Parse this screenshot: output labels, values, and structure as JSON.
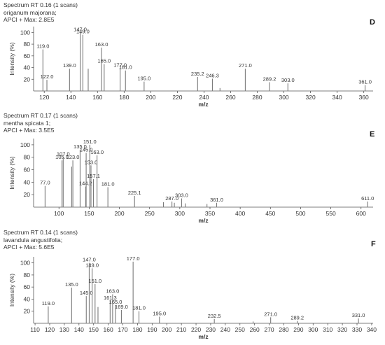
{
  "panels": [
    {
      "header": [
        "Spectrum RT 0.16 (1 scans)",
        "origanum majorana;",
        "APCI +    Max: 2.8E5"
      ],
      "letter": "D"
    },
    {
      "header": [
        "Spectrum RT 0.17 (1 scans)",
        "mentha spicata 1;",
        "APCI +    Max: 3.5E5"
      ],
      "letter": "E"
    },
    {
      "header": [
        "Spectrum RT 0.14 (1 scans)",
        "lavandula angustifolia;",
        "APCI +    Max: 5.6E5"
      ],
      "letter": "F"
    }
  ],
  "chart_data": [
    {
      "type": "bar",
      "ylabel": "Intensity (%)",
      "xlabel": "m/z",
      "xlim": [
        112,
        367
      ],
      "ylim": [
        0,
        110
      ],
      "xticks": [
        120,
        140,
        160,
        180,
        200,
        220,
        240,
        260,
        280,
        300,
        320,
        340,
        360
      ],
      "yticks": [
        20,
        40,
        60,
        80,
        100
      ],
      "peaks": [
        {
          "x": 119.0,
          "y": 71,
          "label": "119.0"
        },
        {
          "x": 122.0,
          "y": 19,
          "label": "122.0"
        },
        {
          "x": 139.0,
          "y": 38,
          "label": "139.0"
        },
        {
          "x": 147.0,
          "y": 100,
          "label": "147.0"
        },
        {
          "x": 149.0,
          "y": 96,
          "label": "149.0"
        },
        {
          "x": 153.0,
          "y": 38,
          "label": ""
        },
        {
          "x": 163.0,
          "y": 74,
          "label": "163.0"
        },
        {
          "x": 165.0,
          "y": 46,
          "label": "165.0"
        },
        {
          "x": 177.0,
          "y": 39,
          "label": "177.0"
        },
        {
          "x": 181.0,
          "y": 35,
          "label": "181.0"
        },
        {
          "x": 195.0,
          "y": 16,
          "label": "195.0"
        },
        {
          "x": 235.2,
          "y": 24,
          "label": "235.2"
        },
        {
          "x": 246.3,
          "y": 21,
          "label": "246.3"
        },
        {
          "x": 252.0,
          "y": 5,
          "label": ""
        },
        {
          "x": 271.0,
          "y": 38,
          "label": "271.0"
        },
        {
          "x": 289.2,
          "y": 15,
          "label": "289.2"
        },
        {
          "x": 303.0,
          "y": 13,
          "label": "303.0"
        },
        {
          "x": 361.0,
          "y": 10,
          "label": "361.0"
        }
      ]
    },
    {
      "type": "bar",
      "ylabel": "Intensity (%)",
      "xlabel": "m/z",
      "xlim": [
        58,
        620
      ],
      "ylim": [
        0,
        110
      ],
      "xticks": [
        100,
        150,
        200,
        250,
        300,
        350,
        400,
        450,
        500,
        550,
        600
      ],
      "yticks": [
        20,
        40,
        60,
        80,
        100
      ],
      "peaks": [
        {
          "x": 77.0,
          "y": 34,
          "label": "77.0"
        },
        {
          "x": 105.0,
          "y": 75,
          "label": "105.0"
        },
        {
          "x": 107.0,
          "y": 80,
          "label": "107.0"
        },
        {
          "x": 123.0,
          "y": 75,
          "label": "123.0"
        },
        {
          "x": 121.0,
          "y": 65,
          "label": ""
        },
        {
          "x": 135.0,
          "y": 92,
          "label": "135.0"
        },
        {
          "x": 144.2,
          "y": 33,
          "label": "144.2"
        },
        {
          "x": 145.0,
          "y": 87,
          "label": "145.0"
        },
        {
          "x": 151.0,
          "y": 100,
          "label": "151.0"
        },
        {
          "x": 153.0,
          "y": 67,
          "label": "153.0"
        },
        {
          "x": 157.1,
          "y": 45,
          "label": "157.1"
        },
        {
          "x": 163.0,
          "y": 83,
          "label": "163.0"
        },
        {
          "x": 181.0,
          "y": 32,
          "label": "181.0"
        },
        {
          "x": 225.1,
          "y": 18,
          "label": "225.1"
        },
        {
          "x": 273.0,
          "y": 8,
          "label": ""
        },
        {
          "x": 287.0,
          "y": 9,
          "label": "287.0"
        },
        {
          "x": 291.0,
          "y": 7,
          "label": ""
        },
        {
          "x": 303.0,
          "y": 14,
          "label": "303.0"
        },
        {
          "x": 309.0,
          "y": 6,
          "label": ""
        },
        {
          "x": 345.0,
          "y": 5,
          "label": ""
        },
        {
          "x": 361.0,
          "y": 7,
          "label": "361.0"
        },
        {
          "x": 611.0,
          "y": 9,
          "label": "611.0"
        }
      ]
    },
    {
      "type": "bar",
      "ylabel": "Intensity (%)",
      "xlabel": "m/z",
      "xlim": [
        109,
        341
      ],
      "ylim": [
        0,
        110
      ],
      "xticks": [
        110,
        120,
        130,
        140,
        150,
        160,
        170,
        180,
        190,
        200,
        210,
        220,
        230,
        240,
        250,
        260,
        270,
        280,
        290,
        300,
        310,
        320,
        330,
        340
      ],
      "yticks": [
        20,
        40,
        60,
        80,
        100
      ],
      "peaks": [
        {
          "x": 119.0,
          "y": 28,
          "label": "119.0"
        },
        {
          "x": 135.0,
          "y": 59,
          "label": "135.0"
        },
        {
          "x": 145.0,
          "y": 45,
          "label": "145.0"
        },
        {
          "x": 147.0,
          "y": 100,
          "label": "147.0"
        },
        {
          "x": 149.0,
          "y": 91,
          "label": "149.0"
        },
        {
          "x": 151.0,
          "y": 65,
          "label": "151.0"
        },
        {
          "x": 153.0,
          "y": 27,
          "label": ""
        },
        {
          "x": 161.3,
          "y": 37,
          "label": "161.3"
        },
        {
          "x": 163.0,
          "y": 48,
          "label": "163.0"
        },
        {
          "x": 165.0,
          "y": 30,
          "label": "165.0"
        },
        {
          "x": 169.0,
          "y": 22,
          "label": "169.0"
        },
        {
          "x": 177.0,
          "y": 102,
          "label": "177.0"
        },
        {
          "x": 181.0,
          "y": 20,
          "label": "181.0"
        },
        {
          "x": 195.0,
          "y": 11,
          "label": "195.0"
        },
        {
          "x": 232.5,
          "y": 7,
          "label": "232.5"
        },
        {
          "x": 259.0,
          "y": 3,
          "label": ""
        },
        {
          "x": 271.0,
          "y": 10,
          "label": "271.0"
        },
        {
          "x": 289.2,
          "y": 4,
          "label": "289.2"
        },
        {
          "x": 331.0,
          "y": 8,
          "label": "331.0"
        }
      ]
    }
  ]
}
